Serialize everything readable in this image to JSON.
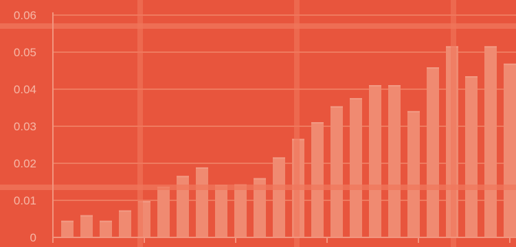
{
  "colors": {
    "background": "#e8553d",
    "gridline": "#ef7a5f",
    "bar": "#f08a71",
    "overlay_line": "#f0775c",
    "axis": "#f2957e",
    "tick_label": "#f6b7a6"
  },
  "chart_data": {
    "type": "bar",
    "title": "",
    "xlabel": "",
    "ylabel": "",
    "ylim": [
      0,
      0.06
    ],
    "yticks": [
      "0",
      "0.01",
      "0.02",
      "0.03",
      "0.04",
      "0.05",
      "0.06"
    ],
    "grid": true,
    "series": [
      {
        "values": [
          0.0045,
          0.006,
          0.0045,
          0.0073,
          0.0098,
          0.0137,
          0.0166,
          0.0189,
          0.0142,
          0.0143,
          0.016,
          0.0216,
          0.0266,
          0.0311,
          0.0354,
          0.0376,
          0.0411,
          0.0411,
          0.0341,
          0.0459,
          0.0516,
          0.0435,
          0.0516,
          0.0469
        ]
      }
    ]
  }
}
